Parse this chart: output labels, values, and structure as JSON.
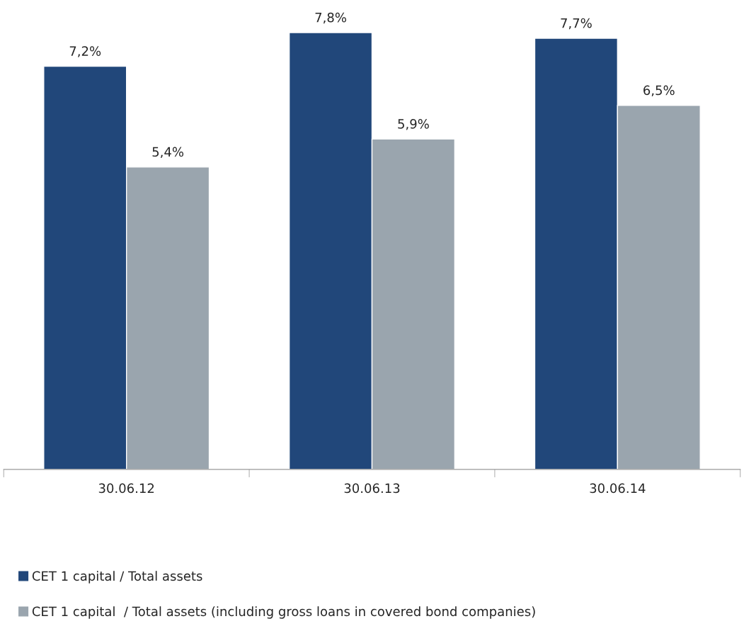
{
  "chart_data": {
    "type": "bar",
    "categories": [
      "30.06.12",
      "30.06.13",
      "30.06.14"
    ],
    "series": [
      {
        "name": "CET 1 capital / Total assets",
        "color": "#21477a",
        "values": [
          7.2,
          7.8,
          7.7
        ],
        "value_labels": [
          "7,2%",
          "7,8%",
          "7,7%"
        ]
      },
      {
        "name": "CET 1 capital  / Total assets (including gross loans in covered bond companies)",
        "color": "#9aa5ae",
        "values": [
          5.4,
          5.9,
          6.5
        ],
        "value_labels": [
          "5,4%",
          "5,9%",
          "6,5%"
        ]
      }
    ],
    "legend": "bottom",
    "grid": false
  }
}
